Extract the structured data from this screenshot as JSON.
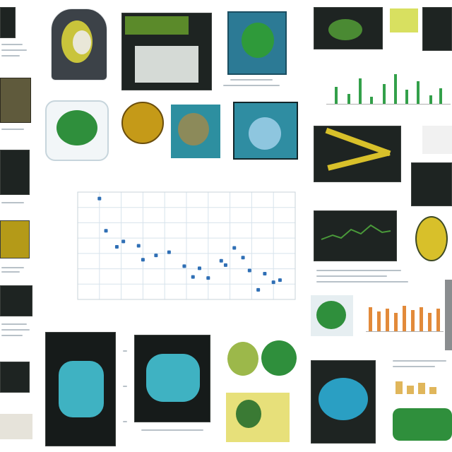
{
  "colors": {
    "accent_green": "#33a04a",
    "accent_teal": "#3fb2c2",
    "accent_yellow": "#d8c02a",
    "accent_orange": "#e28a3a",
    "point_blue": "#2f6fb5",
    "grid": "#d7e3ec"
  },
  "chart_data": {
    "type": "scatter",
    "title": "",
    "xlabel": "",
    "ylabel": "",
    "grid": true,
    "xlim": [
      0,
      10
    ],
    "ylim": [
      0,
      10
    ],
    "xticks": [
      "",
      "",
      "",
      "",
      "",
      "",
      "",
      "",
      "",
      ""
    ],
    "yticks": [
      "",
      "",
      "",
      "",
      "",
      "",
      ""
    ],
    "points": [
      {
        "x": 1.0,
        "y": 9.4
      },
      {
        "x": 1.3,
        "y": 6.4
      },
      {
        "x": 1.8,
        "y": 4.9
      },
      {
        "x": 2.1,
        "y": 5.4
      },
      {
        "x": 2.8,
        "y": 5.0
      },
      {
        "x": 3.0,
        "y": 3.7
      },
      {
        "x": 3.6,
        "y": 4.1
      },
      {
        "x": 4.2,
        "y": 4.4
      },
      {
        "x": 4.9,
        "y": 3.1
      },
      {
        "x": 5.3,
        "y": 2.1
      },
      {
        "x": 5.6,
        "y": 2.9
      },
      {
        "x": 6.0,
        "y": 2.0
      },
      {
        "x": 6.6,
        "y": 3.6
      },
      {
        "x": 6.8,
        "y": 3.2
      },
      {
        "x": 7.2,
        "y": 4.8
      },
      {
        "x": 7.6,
        "y": 3.9
      },
      {
        "x": 7.9,
        "y": 2.7
      },
      {
        "x": 8.3,
        "y": 0.9
      },
      {
        "x": 8.6,
        "y": 2.4
      },
      {
        "x": 9.0,
        "y": 1.6
      },
      {
        "x": 9.3,
        "y": 1.8
      }
    ]
  }
}
